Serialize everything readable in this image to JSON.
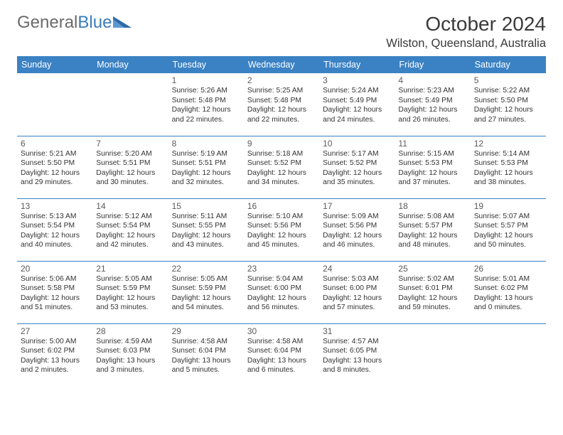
{
  "brand": {
    "part1": "General",
    "part2": "Blue"
  },
  "title": "October 2024",
  "location": "Wilston, Queensland, Australia",
  "colors": {
    "header_bg": "#3b82c4",
    "header_text": "#ffffff",
    "brand_gray": "#6a6a6a",
    "brand_blue": "#3b7bb8",
    "title_color": "#3a3a3a",
    "text_color": "#333333",
    "border_color": "#3b82c4"
  },
  "typography": {
    "month_title_pt": 28,
    "location_pt": 16.5,
    "weekday_pt": 12.5,
    "daynum_pt": 12,
    "detail_pt": 10.3
  },
  "weekdays": [
    "Sunday",
    "Monday",
    "Tuesday",
    "Wednesday",
    "Thursday",
    "Friday",
    "Saturday"
  ],
  "weeks": [
    [
      null,
      null,
      {
        "n": "1",
        "sr": "5:26 AM",
        "ss": "5:48 PM",
        "dl": "12 hours and 22 minutes."
      },
      {
        "n": "2",
        "sr": "5:25 AM",
        "ss": "5:48 PM",
        "dl": "12 hours and 22 minutes."
      },
      {
        "n": "3",
        "sr": "5:24 AM",
        "ss": "5:49 PM",
        "dl": "12 hours and 24 minutes."
      },
      {
        "n": "4",
        "sr": "5:23 AM",
        "ss": "5:49 PM",
        "dl": "12 hours and 26 minutes."
      },
      {
        "n": "5",
        "sr": "5:22 AM",
        "ss": "5:50 PM",
        "dl": "12 hours and 27 minutes."
      }
    ],
    [
      {
        "n": "6",
        "sr": "5:21 AM",
        "ss": "5:50 PM",
        "dl": "12 hours and 29 minutes."
      },
      {
        "n": "7",
        "sr": "5:20 AM",
        "ss": "5:51 PM",
        "dl": "12 hours and 30 minutes."
      },
      {
        "n": "8",
        "sr": "5:19 AM",
        "ss": "5:51 PM",
        "dl": "12 hours and 32 minutes."
      },
      {
        "n": "9",
        "sr": "5:18 AM",
        "ss": "5:52 PM",
        "dl": "12 hours and 34 minutes."
      },
      {
        "n": "10",
        "sr": "5:17 AM",
        "ss": "5:52 PM",
        "dl": "12 hours and 35 minutes."
      },
      {
        "n": "11",
        "sr": "5:15 AM",
        "ss": "5:53 PM",
        "dl": "12 hours and 37 minutes."
      },
      {
        "n": "12",
        "sr": "5:14 AM",
        "ss": "5:53 PM",
        "dl": "12 hours and 38 minutes."
      }
    ],
    [
      {
        "n": "13",
        "sr": "5:13 AM",
        "ss": "5:54 PM",
        "dl": "12 hours and 40 minutes."
      },
      {
        "n": "14",
        "sr": "5:12 AM",
        "ss": "5:54 PM",
        "dl": "12 hours and 42 minutes."
      },
      {
        "n": "15",
        "sr": "5:11 AM",
        "ss": "5:55 PM",
        "dl": "12 hours and 43 minutes."
      },
      {
        "n": "16",
        "sr": "5:10 AM",
        "ss": "5:56 PM",
        "dl": "12 hours and 45 minutes."
      },
      {
        "n": "17",
        "sr": "5:09 AM",
        "ss": "5:56 PM",
        "dl": "12 hours and 46 minutes."
      },
      {
        "n": "18",
        "sr": "5:08 AM",
        "ss": "5:57 PM",
        "dl": "12 hours and 48 minutes."
      },
      {
        "n": "19",
        "sr": "5:07 AM",
        "ss": "5:57 PM",
        "dl": "12 hours and 50 minutes."
      }
    ],
    [
      {
        "n": "20",
        "sr": "5:06 AM",
        "ss": "5:58 PM",
        "dl": "12 hours and 51 minutes."
      },
      {
        "n": "21",
        "sr": "5:05 AM",
        "ss": "5:59 PM",
        "dl": "12 hours and 53 minutes."
      },
      {
        "n": "22",
        "sr": "5:05 AM",
        "ss": "5:59 PM",
        "dl": "12 hours and 54 minutes."
      },
      {
        "n": "23",
        "sr": "5:04 AM",
        "ss": "6:00 PM",
        "dl": "12 hours and 56 minutes."
      },
      {
        "n": "24",
        "sr": "5:03 AM",
        "ss": "6:00 PM",
        "dl": "12 hours and 57 minutes."
      },
      {
        "n": "25",
        "sr": "5:02 AM",
        "ss": "6:01 PM",
        "dl": "12 hours and 59 minutes."
      },
      {
        "n": "26",
        "sr": "5:01 AM",
        "ss": "6:02 PM",
        "dl": "13 hours and 0 minutes."
      }
    ],
    [
      {
        "n": "27",
        "sr": "5:00 AM",
        "ss": "6:02 PM",
        "dl": "13 hours and 2 minutes."
      },
      {
        "n": "28",
        "sr": "4:59 AM",
        "ss": "6:03 PM",
        "dl": "13 hours and 3 minutes."
      },
      {
        "n": "29",
        "sr": "4:58 AM",
        "ss": "6:04 PM",
        "dl": "13 hours and 5 minutes."
      },
      {
        "n": "30",
        "sr": "4:58 AM",
        "ss": "6:04 PM",
        "dl": "13 hours and 6 minutes."
      },
      {
        "n": "31",
        "sr": "4:57 AM",
        "ss": "6:05 PM",
        "dl": "13 hours and 8 minutes."
      },
      null,
      null
    ]
  ],
  "labels": {
    "sunrise": "Sunrise:",
    "sunset": "Sunset:",
    "daylight": "Daylight:"
  }
}
